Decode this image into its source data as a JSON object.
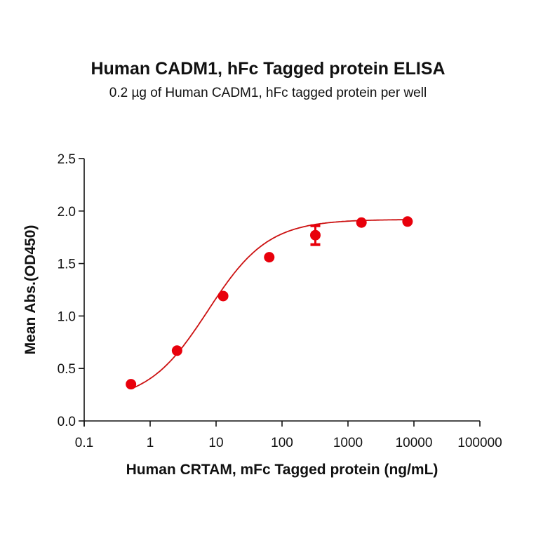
{
  "chart_data": {
    "type": "scatter",
    "title": "Human CADM1, hFc Tagged protein ELISA",
    "subtitle": "0.2 µg of Human CADM1, hFc tagged protein per well",
    "xlabel": "Human CRTAM, mFc Tagged protein (ng/mL)",
    "ylabel": "Mean Abs.(OD450)",
    "xscale": "log",
    "xlim": [
      0.1,
      100000
    ],
    "ylim": [
      0.0,
      2.5
    ],
    "x_ticks": [
      "0.1",
      "1",
      "10",
      "100",
      "1000",
      "10000",
      "100000"
    ],
    "y_ticks": [
      "0.0",
      "0.5",
      "1.0",
      "1.5",
      "2.0",
      "2.5"
    ],
    "grid": false,
    "legend": null,
    "series": [
      {
        "name": "Human CRTAM, mFc Tagged protein",
        "color": "#e8000b",
        "fit": "4PL sigmoidal curve",
        "x": [
          0.512,
          2.56,
          12.8,
          64,
          320,
          1600,
          8000
        ],
        "y": [
          0.35,
          0.67,
          1.19,
          1.56,
          1.77,
          1.89,
          1.9
        ],
        "error": [
          0.01,
          0.01,
          0.01,
          0.01,
          0.09,
          0.01,
          0.01
        ]
      }
    ]
  }
}
